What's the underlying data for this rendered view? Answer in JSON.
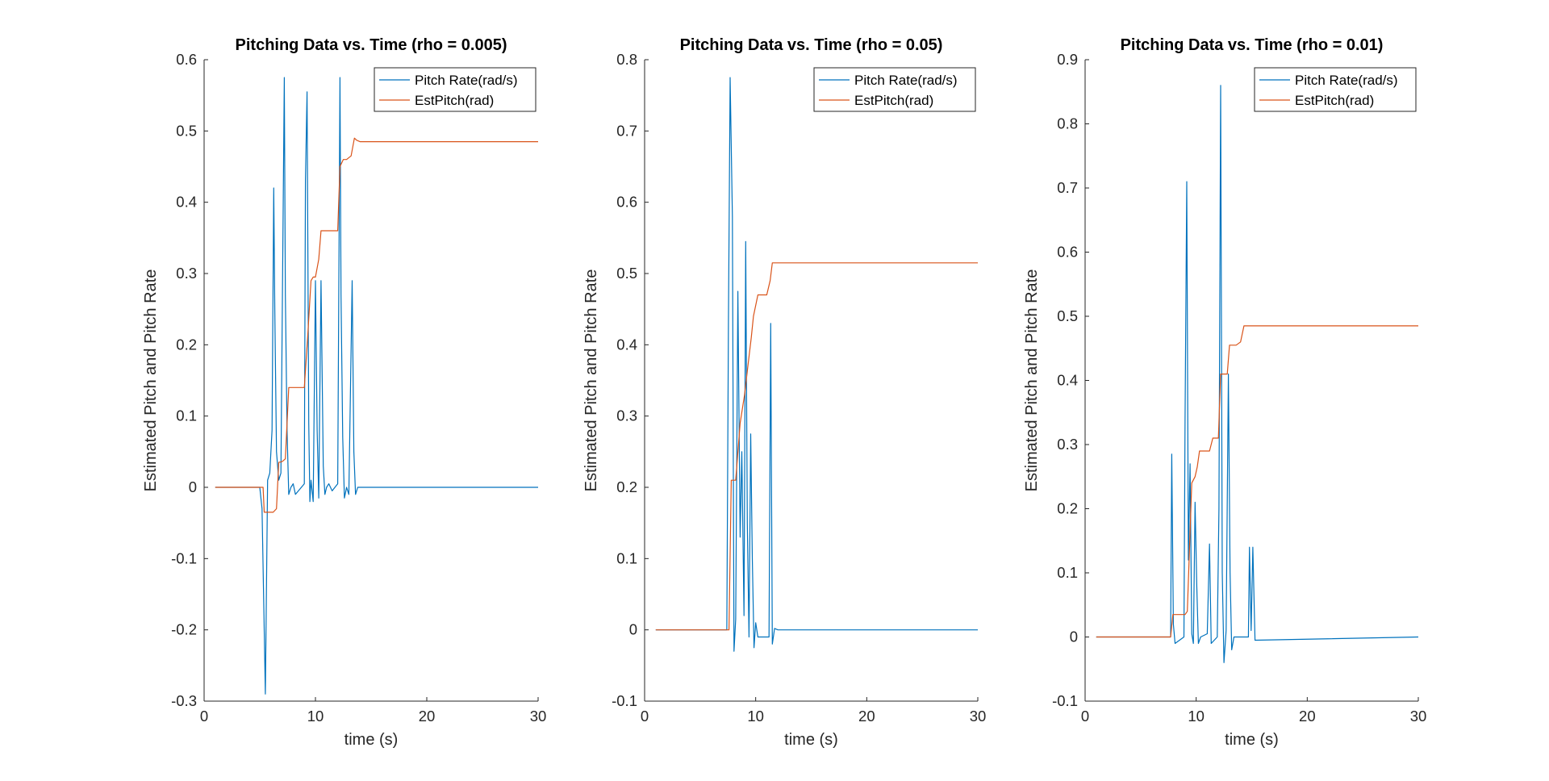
{
  "chart_data": [
    {
      "type": "line",
      "title": "Pitching Data vs. Time (rho = 0.005)",
      "xlabel": "time (s)",
      "ylabel": "Estimated Pitch and Pitch Rate",
      "xlim": [
        0,
        30
      ],
      "ylim": [
        -0.3,
        0.6
      ],
      "xticks": [
        0,
        10,
        20,
        30
      ],
      "yticks": [
        -0.3,
        -0.2,
        -0.1,
        0,
        0.1,
        0.2,
        0.3,
        0.4,
        0.5,
        0.6
      ],
      "ytick_labels": [
        "-0.3",
        "-0.2",
        "-0.1",
        "0",
        "0.1",
        "0.2",
        "0.3",
        "0.4",
        "0.5",
        "0.6"
      ],
      "legend_position": "top-right",
      "grid": false,
      "series": [
        {
          "name": "Pitch Rate(rad/s)",
          "color": "#0072BD",
          "x": [
            1,
            5.0,
            5.2,
            5.4,
            5.5,
            5.7,
            5.9,
            6.1,
            6.25,
            6.35,
            6.5,
            6.7,
            6.9,
            7.05,
            7.2,
            7.3,
            7.45,
            7.6,
            7.8,
            8.0,
            8.2,
            9.0,
            9.1,
            9.25,
            9.4,
            9.5,
            9.6,
            9.8,
            10.0,
            10.15,
            10.3,
            10.5,
            10.7,
            10.85,
            11.0,
            11.2,
            11.5,
            12.0,
            12.2,
            12.3,
            12.45,
            12.6,
            12.8,
            13.0,
            13.3,
            13.45,
            13.6,
            13.8,
            14.2,
            30
          ],
          "y": [
            0,
            0,
            -0.03,
            -0.2,
            -0.29,
            0.01,
            0.02,
            0.08,
            0.42,
            0.25,
            0.05,
            0.01,
            0.02,
            0.3,
            0.575,
            0.27,
            0.08,
            -0.01,
            0,
            0.005,
            -0.01,
            0.005,
            0.43,
            0.555,
            0.09,
            -0.02,
            0.01,
            -0.02,
            0.29,
            0.08,
            -0.015,
            0.29,
            0.03,
            -0.01,
            0,
            0.005,
            -0.005,
            0.005,
            0.575,
            0.27,
            0.07,
            -0.015,
            0.0,
            -0.01,
            0.29,
            0.05,
            -0.01,
            0,
            0,
            0
          ]
        },
        {
          "name": "EstPitch(rad)",
          "color": "#D95319",
          "x": [
            1,
            5.3,
            5.4,
            6.2,
            6.5,
            6.7,
            7.0,
            7.3,
            7.6,
            9.0,
            9.3,
            9.6,
            9.8,
            10.0,
            10.3,
            10.5,
            10.8,
            11.0,
            12.0,
            12.2,
            12.5,
            12.8,
            13.2,
            13.5,
            13.7,
            14.0,
            30
          ],
          "y": [
            0,
            0,
            -0.035,
            -0.035,
            -0.03,
            0.035,
            0.036,
            0.04,
            0.14,
            0.14,
            0.21,
            0.29,
            0.295,
            0.295,
            0.32,
            0.36,
            0.36,
            0.36,
            0.36,
            0.45,
            0.46,
            0.46,
            0.465,
            0.49,
            0.487,
            0.485,
            0.485
          ]
        }
      ]
    },
    {
      "type": "line",
      "title": "Pitching Data vs. Time (rho = 0.05)",
      "xlabel": "time (s)",
      "ylabel": "Estimated Pitch and Pitch Rate",
      "xlim": [
        0,
        30
      ],
      "ylim": [
        -0.1,
        0.8
      ],
      "xticks": [
        0,
        10,
        20,
        30
      ],
      "yticks": [
        -0.1,
        0,
        0.1,
        0.2,
        0.3,
        0.4,
        0.5,
        0.6,
        0.7,
        0.8
      ],
      "ytick_labels": [
        "-0.1",
        "0",
        "0.1",
        "0.2",
        "0.3",
        "0.4",
        "0.5",
        "0.6",
        "0.7",
        "0.8"
      ],
      "legend_position": "top-right",
      "grid": false,
      "series": [
        {
          "name": "Pitch Rate(rad/s)",
          "color": "#0072BD",
          "x": [
            1,
            7.4,
            7.55,
            7.7,
            7.9,
            8.05,
            8.2,
            8.4,
            8.6,
            8.75,
            8.95,
            9.1,
            9.25,
            9.4,
            9.55,
            9.7,
            9.85,
            10.0,
            10.2,
            11.2,
            11.35,
            11.5,
            11.7,
            12.0,
            30
          ],
          "y": [
            0,
            0,
            0.43,
            0.775,
            0.58,
            -0.03,
            0.015,
            0.475,
            0.13,
            0.25,
            0.02,
            0.545,
            0.15,
            -0.01,
            0.275,
            0.1,
            -0.025,
            0.01,
            -0.01,
            -0.01,
            0.43,
            -0.02,
            0.002,
            0,
            0
          ]
        },
        {
          "name": "EstPitch(rad)",
          "color": "#D95319",
          "x": [
            1,
            7.6,
            7.8,
            8.2,
            8.6,
            9.0,
            9.3,
            9.6,
            9.8,
            10.2,
            10.6,
            11.0,
            11.3,
            11.5,
            12.0,
            30
          ],
          "y": [
            0,
            0,
            0.21,
            0.21,
            0.29,
            0.33,
            0.37,
            0.41,
            0.44,
            0.47,
            0.47,
            0.47,
            0.49,
            0.515,
            0.515,
            0.515
          ]
        }
      ]
    },
    {
      "type": "line",
      "title": "Pitching Data vs. Time (rho = 0.01)",
      "xlabel": "time (s)",
      "ylabel": "Estimated Pitch and Pitch Rate",
      "xlim": [
        0,
        30
      ],
      "ylim": [
        -0.1,
        0.9
      ],
      "xticks": [
        0,
        10,
        20,
        30
      ],
      "yticks": [
        -0.1,
        0,
        0.1,
        0.2,
        0.3,
        0.4,
        0.5,
        0.6,
        0.7,
        0.8,
        0.9
      ],
      "ytick_labels": [
        "-0.1",
        "0",
        "0.1",
        "0.2",
        "0.3",
        "0.4",
        "0.5",
        "0.6",
        "0.7",
        "0.8",
        "0.9"
      ],
      "legend_position": "top-right",
      "grid": false,
      "series": [
        {
          "name": "Pitch Rate(rad/s)",
          "color": "#0072BD",
          "x": [
            1,
            7.7,
            7.8,
            7.95,
            8.1,
            8.9,
            9.0,
            9.15,
            9.3,
            9.45,
            9.6,
            9.75,
            9.9,
            10.05,
            10.2,
            10.4,
            11.0,
            11.2,
            11.35,
            11.9,
            12.05,
            12.2,
            12.35,
            12.5,
            12.7,
            12.9,
            13.05,
            13.2,
            13.4,
            14.7,
            14.8,
            14.95,
            15.1,
            15.3,
            30
          ],
          "y": [
            0,
            0,
            0.285,
            0.02,
            -0.01,
            0,
            0.34,
            0.71,
            0.12,
            0.27,
            0.005,
            -0.01,
            0.21,
            0.08,
            -0.01,
            0,
            0.005,
            0.145,
            -0.01,
            0,
            0.2,
            0.86,
            0.1,
            -0.04,
            0.01,
            0.41,
            0.1,
            -0.02,
            0,
            0,
            0.14,
            0.01,
            0.14,
            -0.005,
            0
          ]
        },
        {
          "name": "EstPitch(rad)",
          "color": "#D95319",
          "x": [
            1,
            7.7,
            7.9,
            9.0,
            9.2,
            9.6,
            9.9,
            10.1,
            10.3,
            10.6,
            11.2,
            11.5,
            12.0,
            12.2,
            12.5,
            12.8,
            13.0,
            13.3,
            13.6,
            14.0,
            14.3,
            14.6,
            30
          ],
          "y": [
            0,
            0,
            0.035,
            0.035,
            0.04,
            0.24,
            0.25,
            0.265,
            0.29,
            0.29,
            0.29,
            0.31,
            0.31,
            0.41,
            0.41,
            0.41,
            0.455,
            0.455,
            0.455,
            0.46,
            0.485,
            0.485,
            0.485
          ]
        }
      ]
    }
  ]
}
